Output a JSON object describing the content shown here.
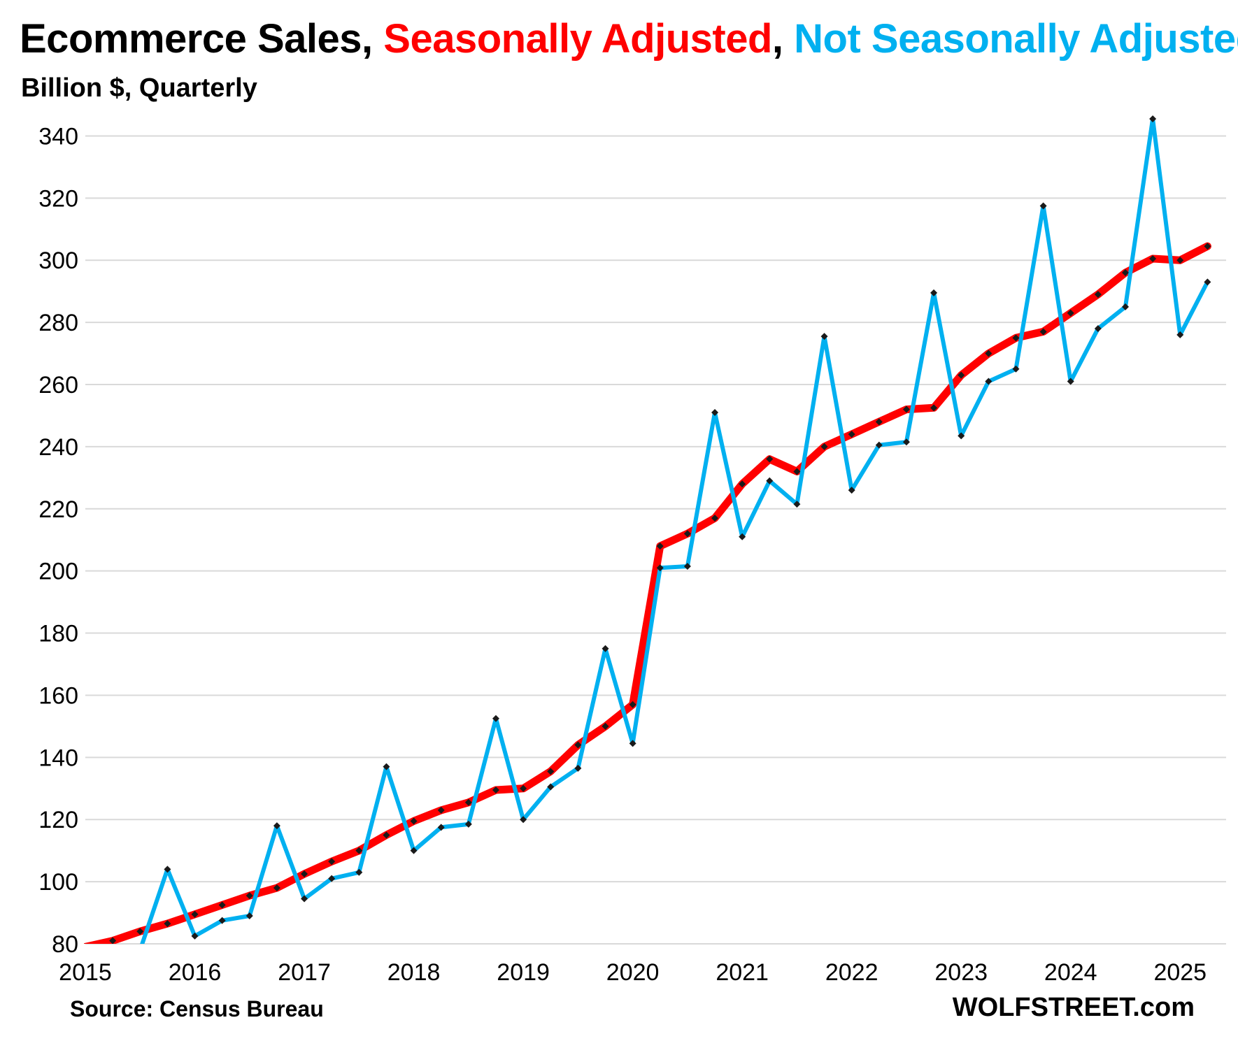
{
  "title": {
    "part1": "Ecommerce Sales, ",
    "part2": "Seasonally Adjusted",
    "part3": ", ",
    "part4": "Not Seasonally Adjusted"
  },
  "subtitle": "Billion $, Quarterly",
  "source": "Source: Census Bureau",
  "brand": "WOLFSTREET.com",
  "colors": {
    "sa": "#ff0000",
    "nsa": "#00b0f0",
    "marker": "#1a1a1a",
    "grid": "#d9d9d9"
  },
  "chart_data": {
    "type": "line",
    "xlim": [
      2015,
      2025.42
    ],
    "ylim": [
      80,
      350
    ],
    "grid": true,
    "yticks": [
      80,
      100,
      120,
      140,
      160,
      180,
      200,
      220,
      240,
      260,
      280,
      300,
      320,
      340
    ],
    "xticks": [
      2015,
      2016,
      2017,
      2018,
      2019,
      2020,
      2021,
      2022,
      2023,
      2024,
      2025
    ],
    "x": [
      2015.0,
      2015.25,
      2015.5,
      2015.75,
      2016.0,
      2016.25,
      2016.5,
      2016.75,
      2017.0,
      2017.25,
      2017.5,
      2017.75,
      2018.0,
      2018.25,
      2018.5,
      2018.75,
      2019.0,
      2019.25,
      2019.5,
      2019.75,
      2020.0,
      2020.25,
      2020.5,
      2020.75,
      2021.0,
      2021.25,
      2021.5,
      2021.75,
      2022.0,
      2022.25,
      2022.5,
      2022.75,
      2023.0,
      2023.25,
      2023.5,
      2023.75,
      2024.0,
      2024.25,
      2024.5,
      2024.75,
      2025.0,
      2025.25
    ],
    "series": [
      {
        "name": "Seasonally Adjusted",
        "values": [
          79,
          81,
          84,
          86.5,
          89.5,
          92.5,
          95.5,
          98,
          102.5,
          106.5,
          110,
          115,
          119.5,
          123,
          125.5,
          129.5,
          130,
          135.5,
          144,
          150,
          157,
          208,
          212,
          217,
          228,
          236,
          232,
          240,
          244,
          248,
          252,
          252.5,
          263,
          270,
          275,
          277,
          283,
          289,
          296,
          300.5,
          300,
          304.5
        ]
      },
      {
        "name": "Not Seasonally Adjusted",
        "values": [
          73,
          76,
          78,
          104,
          82.5,
          87.5,
          89,
          118,
          94.5,
          101,
          103,
          137,
          110,
          117.5,
          118.5,
          152.5,
          120,
          130.5,
          136.5,
          175,
          144.5,
          201,
          201.5,
          251,
          211,
          229,
          221.5,
          275.5,
          226,
          240.5,
          241.5,
          289.5,
          243.5,
          261,
          265,
          317.5,
          261,
          278,
          285,
          345.5,
          276,
          293
        ]
      }
    ]
  }
}
